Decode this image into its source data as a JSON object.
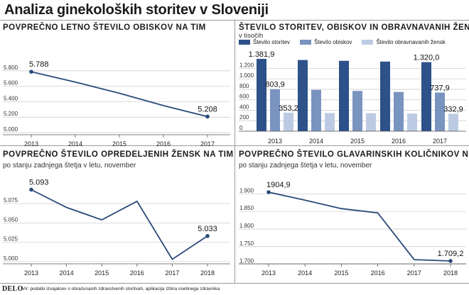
{
  "page": {
    "title": "Analiza ginekoloških storitev v Sloveniji",
    "logo": "DELO",
    "source": "Vir: podatki izvajalcev o obračunanih zdravstvenih storitvah, aplikacija Izbira osebnega zdravnika"
  },
  "colors": {
    "line": "#2a4a79",
    "bar_storitve": "#2d5189",
    "bar_obiskov": "#7a94c0",
    "bar_zensk": "#bccbe3",
    "grid": "#c8c8c8"
  },
  "chart_data": [
    {
      "type": "line",
      "title": "POVPREČNO LETNO ŠTEVILO OBISKOV NA TIM",
      "subtitle": "",
      "x": [
        "2013",
        "2014",
        "2015",
        "2016",
        "2017"
      ],
      "values": [
        5788,
        5655,
        5510,
        5350,
        5208
      ],
      "ylim": [
        5000,
        5900
      ],
      "yticks": [
        5000,
        5200,
        5400,
        5600,
        5800
      ],
      "ytick_labels": [
        "5.000",
        "5.200",
        "5.400",
        "5.600",
        "5.800"
      ],
      "annotations": [
        {
          "index": 0,
          "text": "5.788"
        },
        {
          "index": 4,
          "text": "5.208"
        }
      ],
      "grid": true
    },
    {
      "type": "bar",
      "title": "ŠTEVILO STORITEV, OBISKOV IN OBRAVNAVANIH ŽENSK",
      "subtitle": "v tisočih",
      "categories": [
        "2013",
        "2014",
        "2015",
        "2016",
        "2017"
      ],
      "series": [
        {
          "name": "Število storitev",
          "values": [
            1381.9,
            1360,
            1345,
            1330,
            1320.0
          ]
        },
        {
          "name": "Število obiskov",
          "values": [
            803.9,
            790,
            770,
            750,
            737.9
          ]
        },
        {
          "name": "Število obravnavanih žensk",
          "values": [
            353.2,
            348,
            343,
            338,
            332.9
          ]
        }
      ],
      "ylim": [
        0,
        1450
      ],
      "yticks": [
        0,
        200,
        400,
        600,
        800,
        1000,
        1200
      ],
      "ytick_labels": [
        "0",
        "200",
        "400",
        "600",
        "800",
        "1.000",
        "1.200"
      ],
      "annotations": [
        {
          "series": 0,
          "index": 0,
          "text": "1.381,9"
        },
        {
          "series": 1,
          "index": 0,
          "text": "803,9"
        },
        {
          "series": 2,
          "index": 0,
          "text": "353,2"
        },
        {
          "series": 0,
          "index": 4,
          "text": "1.320,0"
        },
        {
          "series": 1,
          "index": 4,
          "text": "737,9"
        },
        {
          "series": 2,
          "index": 4,
          "text": "332,9"
        }
      ],
      "legend": "top",
      "grid": true
    },
    {
      "type": "line",
      "title": "POVPREČNO ŠTEVILO OPREDELJENIH ŽENSK NA TIM",
      "subtitle": "po stanju zadnjega štetja v letu, november",
      "x": [
        "2013",
        "2014",
        "2015",
        "2016",
        "2017",
        "2018"
      ],
      "values": [
        5093,
        5070,
        5054,
        5078,
        5003,
        5033
      ],
      "ylim": [
        4998,
        5098
      ],
      "yticks": [
        5000,
        5025,
        5050,
        5075
      ],
      "ytick_labels": [
        "5.000",
        "5.025",
        "5.050",
        "5.075"
      ],
      "annotations": [
        {
          "index": 0,
          "text": "5.093"
        },
        {
          "index": 5,
          "text": "5.033"
        }
      ],
      "grid": true
    },
    {
      "type": "line",
      "title": "POVPREČNO ŠTEVILO GLAVARINSKIH KOLIČNIKOV NA TIM",
      "subtitle": "po stanju zadnjega štetja v letu, november",
      "x": [
        "2013",
        "2014",
        "2015",
        "2016",
        "2017",
        "2018"
      ],
      "values": [
        1904.9,
        1882,
        1858,
        1846,
        1713,
        1709.2
      ],
      "ylim": [
        1695,
        1915
      ],
      "yticks": [
        1700,
        1750,
        1800,
        1850,
        1900
      ],
      "ytick_labels": [
        "1.700",
        "1.750",
        "1.800",
        "1.850",
        "1.900"
      ],
      "annotations": [
        {
          "index": 0,
          "text": "1904,9"
        },
        {
          "index": 5,
          "text": "1.709,2"
        }
      ],
      "grid": true
    }
  ]
}
